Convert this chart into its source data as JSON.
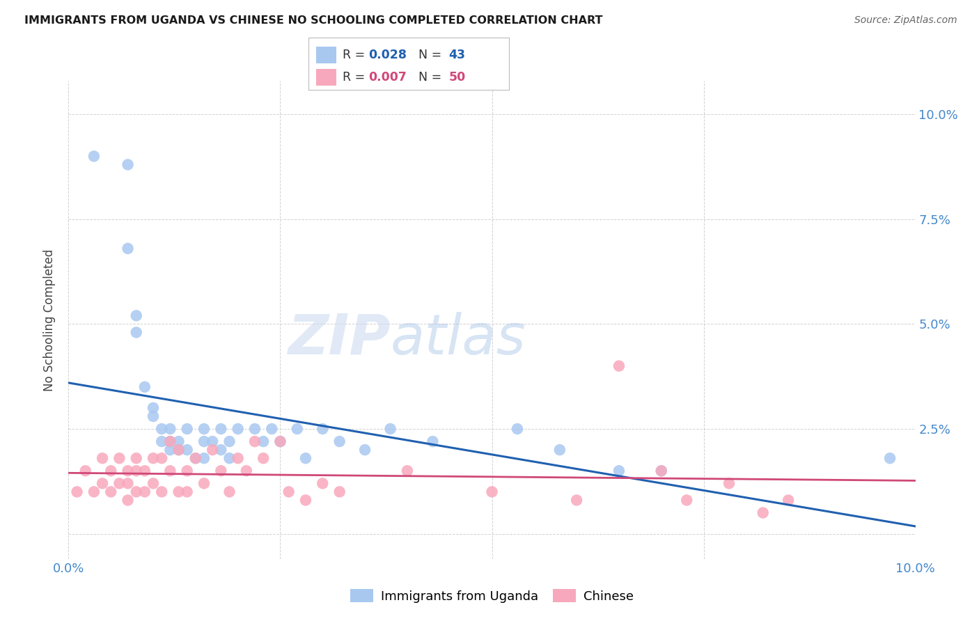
{
  "title": "IMMIGRANTS FROM UGANDA VS CHINESE NO SCHOOLING COMPLETED CORRELATION CHART",
  "source": "Source: ZipAtlas.com",
  "ylabel": "No Schooling Completed",
  "xlim": [
    0.0,
    0.1
  ],
  "ylim": [
    -0.006,
    0.108
  ],
  "x_ticks": [
    0.0,
    0.025,
    0.05,
    0.075,
    0.1
  ],
  "y_ticks": [
    0.0,
    0.025,
    0.05,
    0.075,
    0.1
  ],
  "series1_label": "Immigrants from Uganda",
  "series1_R": "0.028",
  "series1_N": "43",
  "series1_color": "#a8c8f0",
  "series1_line_color": "#2060b0",
  "series2_label": "Chinese",
  "series2_R": "0.007",
  "series2_N": "50",
  "series2_color": "#f8a8bc",
  "series2_line_color": "#d04878",
  "background_color": "#ffffff",
  "watermark_zip": "ZIP",
  "watermark_atlas": "atlas",
  "series1_x": [
    0.003,
    0.007,
    0.007,
    0.008,
    0.008,
    0.009,
    0.01,
    0.01,
    0.011,
    0.011,
    0.012,
    0.012,
    0.012,
    0.013,
    0.013,
    0.014,
    0.014,
    0.015,
    0.016,
    0.016,
    0.016,
    0.017,
    0.018,
    0.018,
    0.019,
    0.019,
    0.02,
    0.022,
    0.023,
    0.024,
    0.025,
    0.027,
    0.028,
    0.03,
    0.032,
    0.035,
    0.038,
    0.043,
    0.053,
    0.058,
    0.065,
    0.07,
    0.097
  ],
  "series1_y": [
    0.09,
    0.088,
    0.068,
    0.052,
    0.048,
    0.035,
    0.03,
    0.028,
    0.025,
    0.022,
    0.025,
    0.022,
    0.02,
    0.022,
    0.02,
    0.025,
    0.02,
    0.018,
    0.025,
    0.022,
    0.018,
    0.022,
    0.025,
    0.02,
    0.022,
    0.018,
    0.025,
    0.025,
    0.022,
    0.025,
    0.022,
    0.025,
    0.018,
    0.025,
    0.022,
    0.02,
    0.025,
    0.022,
    0.025,
    0.02,
    0.015,
    0.015,
    0.018
  ],
  "series2_x": [
    0.001,
    0.002,
    0.003,
    0.004,
    0.004,
    0.005,
    0.005,
    0.006,
    0.006,
    0.007,
    0.007,
    0.007,
    0.008,
    0.008,
    0.008,
    0.009,
    0.009,
    0.01,
    0.01,
    0.011,
    0.011,
    0.012,
    0.012,
    0.013,
    0.013,
    0.014,
    0.014,
    0.015,
    0.016,
    0.017,
    0.018,
    0.019,
    0.02,
    0.021,
    0.022,
    0.023,
    0.025,
    0.026,
    0.028,
    0.03,
    0.032,
    0.04,
    0.05,
    0.06,
    0.065,
    0.07,
    0.073,
    0.078,
    0.082,
    0.085
  ],
  "series2_y": [
    0.01,
    0.015,
    0.01,
    0.018,
    0.012,
    0.015,
    0.01,
    0.018,
    0.012,
    0.015,
    0.012,
    0.008,
    0.018,
    0.015,
    0.01,
    0.015,
    0.01,
    0.018,
    0.012,
    0.018,
    0.01,
    0.022,
    0.015,
    0.02,
    0.01,
    0.015,
    0.01,
    0.018,
    0.012,
    0.02,
    0.015,
    0.01,
    0.018,
    0.015,
    0.022,
    0.018,
    0.022,
    0.01,
    0.008,
    0.012,
    0.01,
    0.015,
    0.01,
    0.008,
    0.04,
    0.015,
    0.008,
    0.012,
    0.005,
    0.008
  ]
}
